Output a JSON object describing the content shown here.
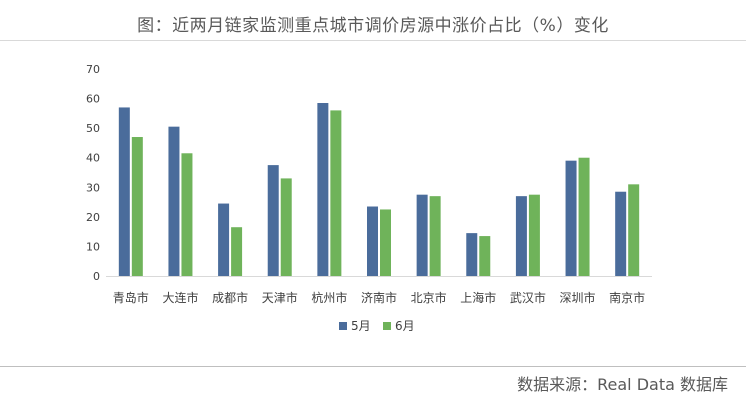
{
  "title": "图：近两月链家监测重点城市调价房源中涨价占比（%）变化",
  "source": "数据来源：Real Data 数据库",
  "colors": {
    "series_5": "#4a6c9b",
    "series_6": "#6fb35a",
    "axis": "#d9d9d9",
    "text": "#404040"
  },
  "chart_data": {
    "type": "bar",
    "categories": [
      "青岛市",
      "大连市",
      "成都市",
      "天津市",
      "杭州市",
      "济南市",
      "北京市",
      "上海市",
      "武汉市",
      "深圳市",
      "南京市"
    ],
    "series": [
      {
        "name": "5月",
        "values": [
          57,
          50.5,
          24.5,
          37.5,
          58.5,
          23.5,
          27.5,
          14.5,
          27,
          39,
          28.5
        ]
      },
      {
        "name": "6月",
        "values": [
          47,
          41.5,
          16.5,
          33,
          56,
          22.5,
          27,
          13.5,
          27.5,
          40,
          31
        ]
      }
    ],
    "ylim": [
      0,
      70
    ],
    "yticks": [
      0,
      10,
      20,
      30,
      40,
      50,
      60,
      70
    ],
    "grid": false,
    "legend": "bottom"
  }
}
